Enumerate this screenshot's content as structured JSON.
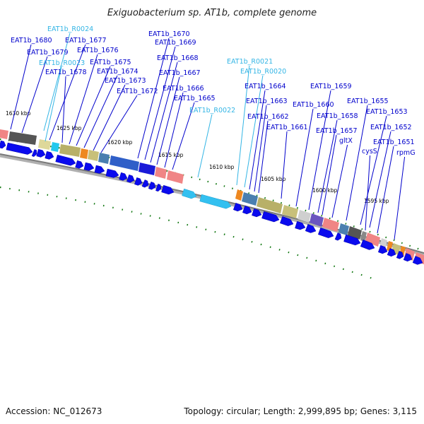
{
  "title": "Exiguobacterium sp. AT1b, complete genome",
  "footer": {
    "accession": "Accession: NC_012673",
    "summary": "Topology: circular; Length: 2,999,895 bp; Genes: 3,115"
  },
  "colors": {
    "gene_label": "#0000cc",
    "rna_label": "#33b5e5",
    "cds_arrow": "#0a0aee",
    "rna_arrow": "#33c0f0",
    "tick": "#117711",
    "backbone": "#888888"
  },
  "ruler": [
    {
      "label": "1630 kbp"
    },
    {
      "label": "1625 kbp"
    },
    {
      "label": "1620 kbp"
    },
    {
      "label": "1615 kbp"
    },
    {
      "label": "1610 kbp"
    },
    {
      "label": "1605 kbp"
    },
    {
      "label": "1600 kbp"
    },
    {
      "label": "1595 kbp"
    }
  ],
  "gene_labels": [
    {
      "text": "EAT1b_R0024",
      "kind": "rna"
    },
    {
      "text": "EAT1b_1680",
      "kind": "cds"
    },
    {
      "text": "EAT1b_1677",
      "kind": "cds"
    },
    {
      "text": "EAT1b_1679",
      "kind": "cds"
    },
    {
      "text": "EAT1b_1676",
      "kind": "cds"
    },
    {
      "text": "EAT1b_R0023",
      "kind": "rna"
    },
    {
      "text": "EAT1b_1675",
      "kind": "cds"
    },
    {
      "text": "EAT1b_1678",
      "kind": "cds"
    },
    {
      "text": "EAT1b_1674",
      "kind": "cds"
    },
    {
      "text": "EAT1b_1673",
      "kind": "cds"
    },
    {
      "text": "EAT1b_1672",
      "kind": "cds"
    },
    {
      "text": "EAT1b_1670",
      "kind": "cds"
    },
    {
      "text": "EAT1b_1669",
      "kind": "cds"
    },
    {
      "text": "EAT1b_1668",
      "kind": "cds"
    },
    {
      "text": "EAT1b_1667",
      "kind": "cds"
    },
    {
      "text": "EAT1b_1666",
      "kind": "cds"
    },
    {
      "text": "EAT1b_1665",
      "kind": "cds"
    },
    {
      "text": "EAT1b_R0022",
      "kind": "rna"
    },
    {
      "text": "EAT1b_R0021",
      "kind": "rna"
    },
    {
      "text": "EAT1b_R0020",
      "kind": "rna"
    },
    {
      "text": "EAT1b_1664",
      "kind": "cds"
    },
    {
      "text": "EAT1b_1663",
      "kind": "cds"
    },
    {
      "text": "EAT1b_1662",
      "kind": "cds"
    },
    {
      "text": "EAT1b_1661",
      "kind": "cds"
    },
    {
      "text": "EAT1b_1660",
      "kind": "cds"
    },
    {
      "text": "EAT1b_1659",
      "kind": "cds"
    },
    {
      "text": "EAT1b_1658",
      "kind": "cds"
    },
    {
      "text": "EAT1b_1657",
      "kind": "cds"
    },
    {
      "text": "gltX",
      "kind": "cds"
    },
    {
      "text": "EAT1b_1655",
      "kind": "cds"
    },
    {
      "text": "EAT1b_1653",
      "kind": "cds"
    },
    {
      "text": "EAT1b_1652",
      "kind": "cds"
    },
    {
      "text": "cysS",
      "kind": "cds"
    },
    {
      "text": "EAT1b_1651",
      "kind": "cds"
    },
    {
      "text": "rpmG",
      "kind": "cds"
    }
  ]
}
